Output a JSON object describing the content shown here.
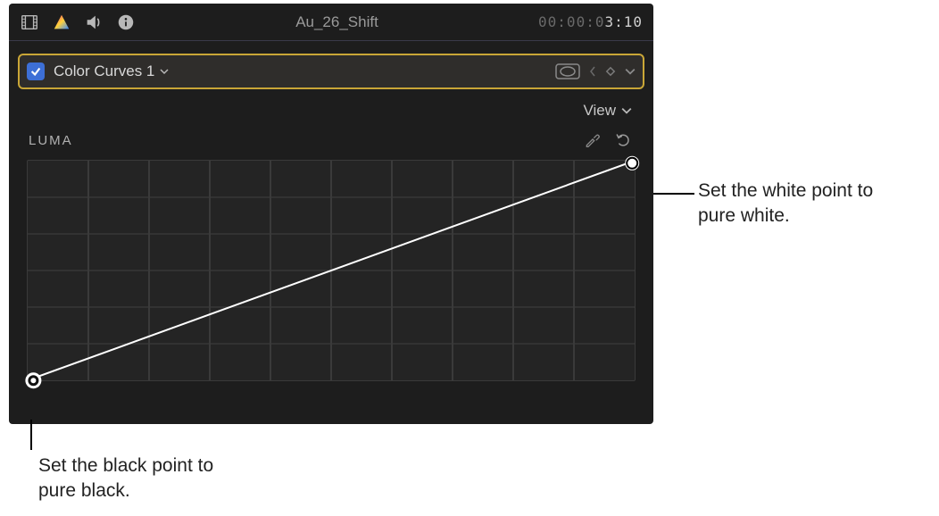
{
  "topbar": {
    "clip_title": "Au_26_Shift",
    "timecode_dim": "00:00:0",
    "timecode_active": "3:10"
  },
  "effect": {
    "checked": true,
    "name": "Color Curves 1"
  },
  "view": {
    "menu_label": "View"
  },
  "curve": {
    "channel_label": "LUMA",
    "grid": {
      "cols": 10,
      "rows": 6,
      "bg_color": "#242424",
      "line_color": "#3a3a3a"
    },
    "line": {
      "start": [
        0,
        1
      ],
      "end": [
        1,
        0
      ],
      "stroke": "#ffffff",
      "width": 2
    },
    "points": {
      "black": {
        "x": 0.0,
        "y": 1.0
      },
      "white": {
        "x": 1.0,
        "y": 0.0
      }
    }
  },
  "callouts": {
    "white_point": "Set the white point to pure white.",
    "black_point": "Set the black point to pure black."
  },
  "icons": {
    "film": "film-icon",
    "color": "color-icon",
    "audio": "audio-icon",
    "info": "info-icon",
    "mask": "mask-icon",
    "keyframe": "keyframe-icon",
    "eyedropper": "eyedropper-icon",
    "reset": "reset-icon",
    "chevron": "chevron-down-icon"
  },
  "colors": {
    "panel_bg": "#1d1d1d",
    "selection_border": "#c9a637",
    "checkbox_bg": "#3d6fd6",
    "text_primary": "#d8d8d8",
    "text_muted": "#9a9a9a"
  }
}
